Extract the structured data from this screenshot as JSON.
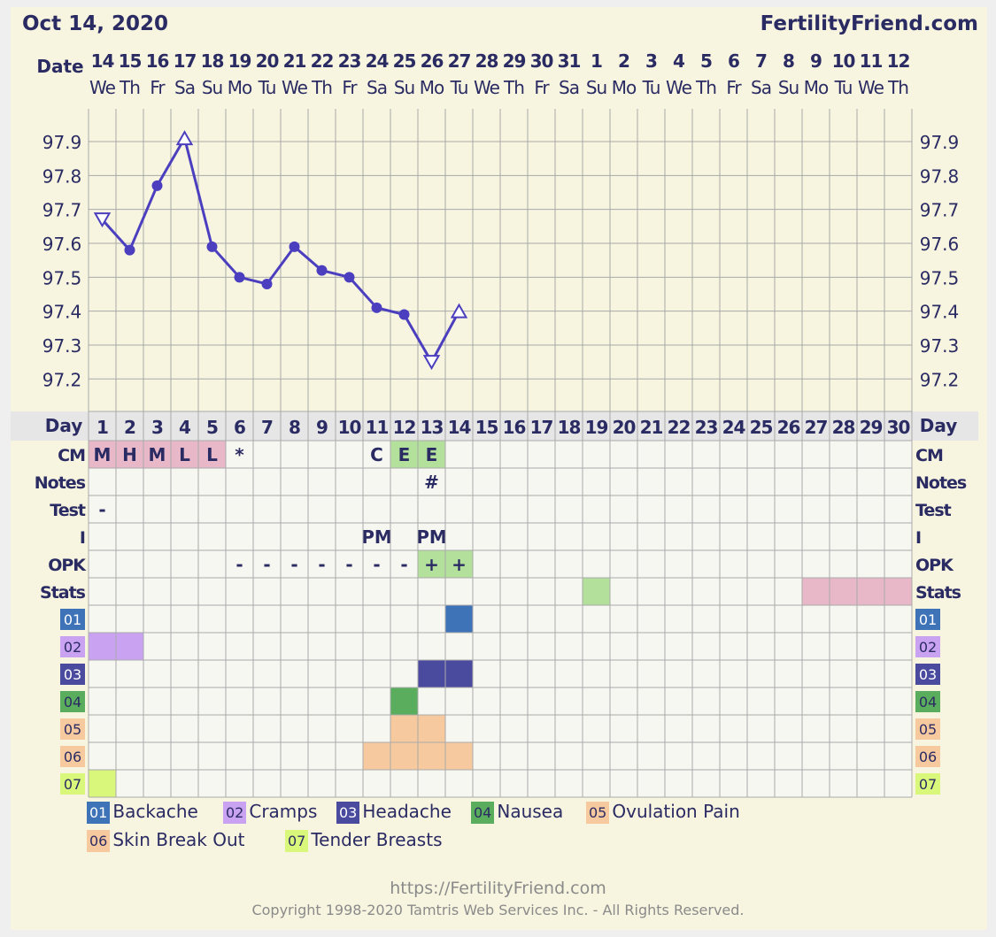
{
  "header": {
    "date": "Oct 14, 2020",
    "site": "FertilityFriend.com"
  },
  "footer": {
    "url": "https://FertilityFriend.com",
    "copyright": "Copyright 1998-2020 Tamtris Web Services Inc. - All Rights Reserved."
  },
  "columns": {
    "dates": [
      "14",
      "15",
      "16",
      "17",
      "18",
      "19",
      "20",
      "21",
      "22",
      "23",
      "24",
      "25",
      "26",
      "27",
      "28",
      "29",
      "30",
      "31",
      "1",
      "2",
      "3",
      "4",
      "5",
      "6",
      "7",
      "8",
      "9",
      "10",
      "11",
      "12"
    ],
    "weekdays": [
      "We",
      "Th",
      "Fr",
      "Sa",
      "Su",
      "Mo",
      "Tu",
      "We",
      "Th",
      "Fr",
      "Sa",
      "Su",
      "Mo",
      "Tu",
      "We",
      "Th",
      "Fr",
      "Sa",
      "Su",
      "Mo",
      "Tu",
      "We",
      "Th",
      "Fr",
      "Sa",
      "Su",
      "Mo",
      "Tu",
      "We",
      "Th"
    ],
    "days": [
      "1",
      "2",
      "3",
      "4",
      "5",
      "6",
      "7",
      "8",
      "9",
      "10",
      "11",
      "12",
      "13",
      "14",
      "15",
      "16",
      "17",
      "18",
      "19",
      "20",
      "21",
      "22",
      "23",
      "24",
      "25",
      "26",
      "27",
      "28",
      "29",
      "30"
    ]
  },
  "labels": {
    "date": "Date",
    "day": "Day",
    "cm": "CM",
    "notes": "Notes",
    "test": "Test",
    "i": "I",
    "opk": "OPK",
    "stats": "Stats"
  },
  "chart_data": {
    "type": "line",
    "x": [
      1,
      2,
      3,
      4,
      5,
      6,
      7,
      8,
      9,
      10,
      11,
      12,
      13,
      14
    ],
    "y": [
      97.67,
      97.58,
      97.77,
      97.91,
      97.59,
      97.5,
      97.48,
      97.59,
      97.52,
      97.5,
      97.41,
      97.39,
      97.25,
      97.4
    ],
    "markers": [
      "open-down-triangle",
      "dot",
      "dot",
      "open-up-triangle",
      "dot",
      "dot",
      "dot",
      "dot",
      "dot",
      "dot",
      "dot",
      "dot",
      "open-down-triangle",
      "open-up-triangle"
    ],
    "ylim": [
      97.1,
      98.0
    ],
    "yticks": [
      "97.9",
      "97.8",
      "97.7",
      "97.6",
      "97.5",
      "97.4",
      "97.3",
      "97.2"
    ],
    "line_color": "#4b3fbf",
    "grid": true
  },
  "rows": {
    "cm": [
      {
        "day": 1,
        "text": "M",
        "bg": "#e8b8c8"
      },
      {
        "day": 2,
        "text": "H",
        "bg": "#e8b8c8"
      },
      {
        "day": 3,
        "text": "M",
        "bg": "#e8b8c8"
      },
      {
        "day": 4,
        "text": "L",
        "bg": "#e8b8c8"
      },
      {
        "day": 5,
        "text": "L",
        "bg": "#e8b8c8"
      },
      {
        "day": 6,
        "text": "*",
        "bg": ""
      },
      {
        "day": 11,
        "text": "C",
        "bg": ""
      },
      {
        "day": 12,
        "text": "E",
        "bg": "#b3e09a"
      },
      {
        "day": 13,
        "text": "E",
        "bg": "#b3e09a"
      }
    ],
    "notes": [
      {
        "day": 13,
        "text": "#",
        "bg": ""
      }
    ],
    "test": [
      {
        "day": 1,
        "text": "-",
        "bg": ""
      }
    ],
    "i": [
      {
        "day": 11,
        "text": "PM",
        "bg": ""
      },
      {
        "day": 13,
        "text": "PM",
        "bg": ""
      }
    ],
    "opk": [
      {
        "day": 6,
        "text": "-",
        "bg": ""
      },
      {
        "day": 7,
        "text": "-",
        "bg": ""
      },
      {
        "day": 8,
        "text": "-",
        "bg": ""
      },
      {
        "day": 9,
        "text": "-",
        "bg": ""
      },
      {
        "day": 10,
        "text": "-",
        "bg": ""
      },
      {
        "day": 11,
        "text": "-",
        "bg": ""
      },
      {
        "day": 12,
        "text": "-",
        "bg": ""
      },
      {
        "day": 13,
        "text": "+",
        "bg": "#b3e09a"
      },
      {
        "day": 14,
        "text": "+",
        "bg": "#b3e09a"
      }
    ],
    "stats": [
      {
        "day": 19,
        "text": "",
        "bg": "#b3e09a"
      },
      {
        "day": 27,
        "text": "",
        "bg": "#e8b8c8"
      },
      {
        "day": 28,
        "text": "",
        "bg": "#e8b8c8"
      },
      {
        "day": 29,
        "text": "",
        "bg": "#e8b8c8"
      },
      {
        "day": 30,
        "text": "",
        "bg": "#e8b8c8"
      }
    ]
  },
  "symptoms": [
    {
      "code": "01",
      "name": "Backache",
      "color": "#3e73b8",
      "text_color": "#ffffff",
      "days": [
        14
      ]
    },
    {
      "code": "02",
      "name": "Cramps",
      "color": "#c9a3f2",
      "text_color": "#2b2b63",
      "days": [
        1,
        2
      ]
    },
    {
      "code": "03",
      "name": "Headache",
      "color": "#4a4a9e",
      "text_color": "#ffffff",
      "days": [
        13,
        14
      ]
    },
    {
      "code": "04",
      "name": "Nausea",
      "color": "#5aad5c",
      "text_color": "#2b2b63",
      "days": [
        12
      ]
    },
    {
      "code": "05",
      "name": "Ovulation Pain",
      "color": "#f6c99f",
      "text_color": "#2b2b63",
      "days": [
        12,
        13
      ]
    },
    {
      "code": "06",
      "name": "Skin Break Out",
      "color": "#f6c99f",
      "text_color": "#2b2b63",
      "days": [
        11,
        12,
        13,
        14
      ]
    },
    {
      "code": "07",
      "name": "Tender Breasts",
      "color": "#d9f77a",
      "text_color": "#2b2b63",
      "days": [
        1
      ]
    }
  ]
}
